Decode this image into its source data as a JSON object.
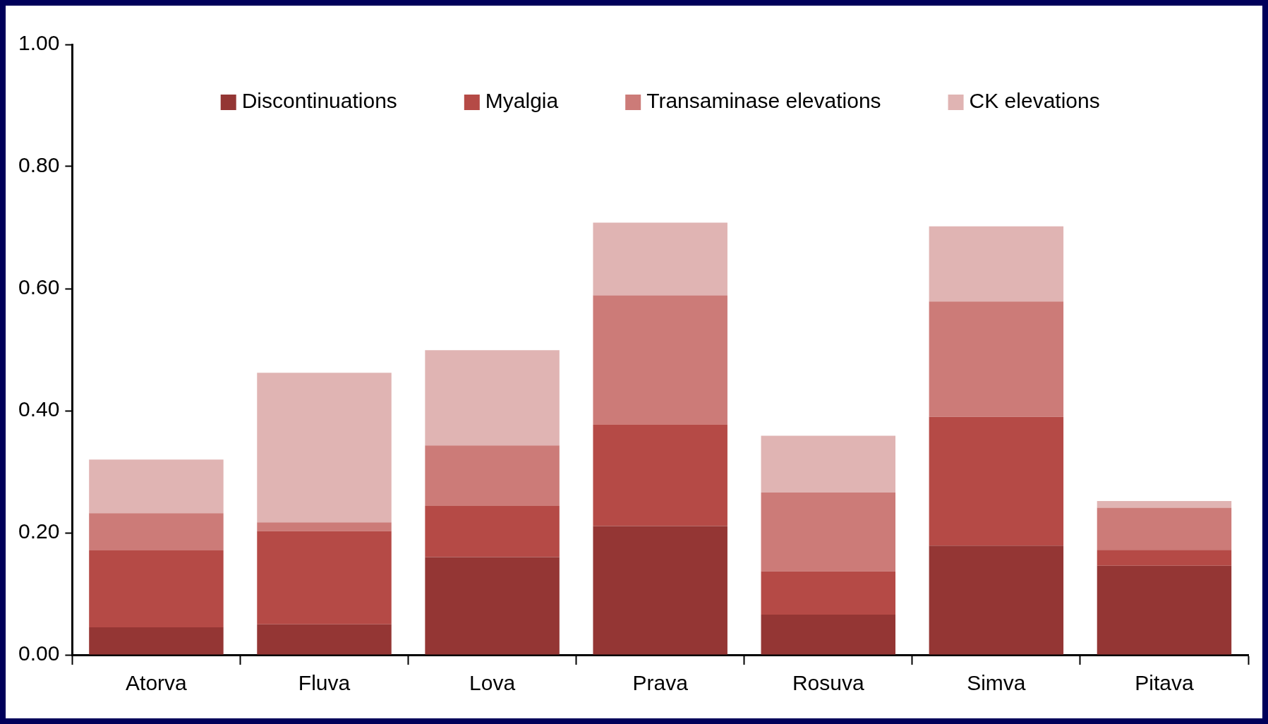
{
  "chart_data": {
    "type": "bar",
    "stacked": true,
    "categories": [
      "Atorva",
      "Fluva",
      "Lova",
      "Prava",
      "Rosuva",
      "Simva",
      "Pitava"
    ],
    "series": [
      {
        "name": "Discontinuations",
        "color": "#943634",
        "values": [
          0.045,
          0.05,
          0.16,
          0.211,
          0.066,
          0.179,
          0.146
        ]
      },
      {
        "name": "Myalgia",
        "color": "#b54a46",
        "values": [
          0.126,
          0.153,
          0.084,
          0.166,
          0.071,
          0.211,
          0.026
        ]
      },
      {
        "name": "Transaminase elevations",
        "color": "#cc7b78",
        "values": [
          0.061,
          0.014,
          0.099,
          0.212,
          0.129,
          0.189,
          0.069
        ]
      },
      {
        "name": "CK elevations",
        "color": "#e0b4b3",
        "values": [
          0.088,
          0.245,
          0.156,
          0.119,
          0.093,
          0.123,
          0.011
        ]
      }
    ],
    "ylim": [
      0,
      1
    ],
    "yticks": [
      {
        "value": 0,
        "label": "0.00"
      },
      {
        "value": 0.2,
        "label": "0.20"
      },
      {
        "value": 0.4,
        "label": "0.40"
      },
      {
        "value": 0.6,
        "label": "0.60"
      },
      {
        "value": 0.8,
        "label": "0.80"
      },
      {
        "value": 1,
        "label": "1.00"
      }
    ],
    "grid": false,
    "legend": "top"
  }
}
